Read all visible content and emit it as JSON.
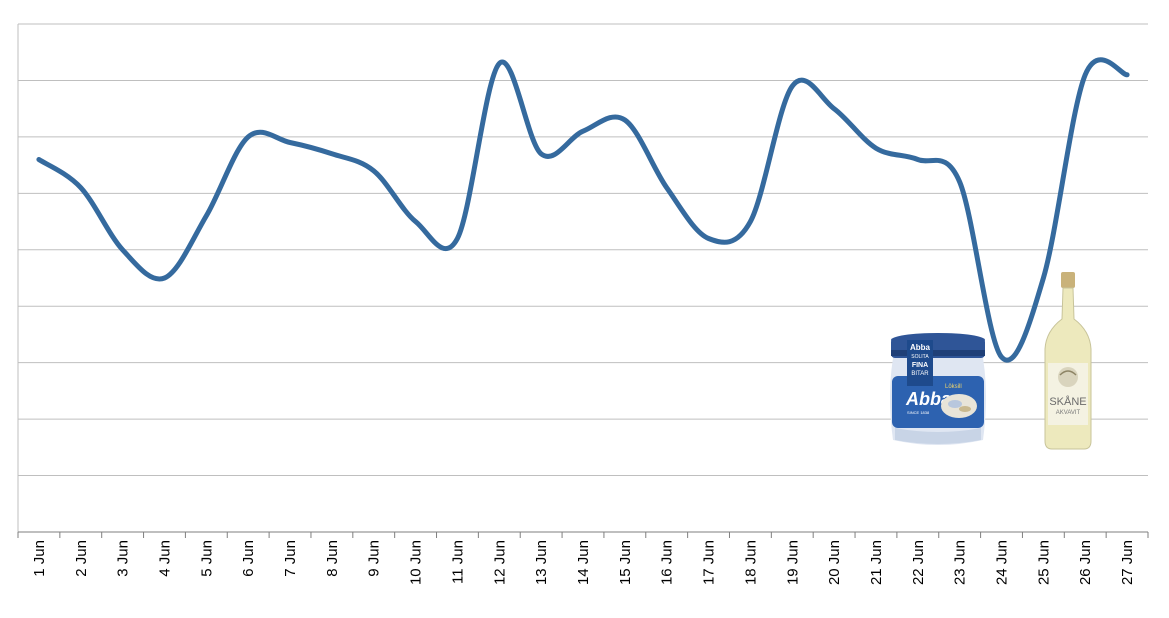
{
  "chart_data": {
    "type": "line",
    "categories": [
      "1 Jun",
      "2 Jun",
      "3 Jun",
      "4 Jun",
      "5 Jun",
      "6 Jun",
      "7 Jun",
      "8 Jun",
      "9 Jun",
      "10 Jun",
      "11 Jun",
      "12 Jun",
      "13 Jun",
      "14 Jun",
      "15 Jun",
      "16 Jun",
      "17 Jun",
      "18 Jun",
      "19 Jun",
      "20 Jun",
      "21 Jun",
      "22 Jun",
      "23 Jun",
      "24 Jun",
      "25 Jun",
      "26 Jun",
      "27 Jun"
    ],
    "values": [
      6.6,
      6.1,
      5.0,
      4.5,
      5.6,
      7.0,
      6.9,
      6.7,
      6.4,
      5.5,
      5.2,
      8.3,
      6.7,
      7.1,
      7.3,
      6.1,
      5.2,
      5.5,
      7.9,
      7.5,
      6.8,
      6.6,
      6.2,
      3.1,
      4.5,
      8.1,
      8.1
    ],
    "ylim": [
      0,
      9
    ],
    "y_ticks": [
      0,
      1,
      2,
      3,
      4,
      5,
      6,
      7,
      8,
      9
    ],
    "grid": true,
    "line_color": "#356A9E",
    "grid_color": "#BFBFBF"
  },
  "products": {
    "herring_jar": {
      "brand": "Abba",
      "variety": "Löksill",
      "badge_lines": [
        "Abba",
        "SOLITA",
        "FINA",
        "BITAR"
      ],
      "since": "SINCE 1838"
    },
    "akvavit_bottle": {
      "brand": "SKÅNE",
      "type": "AKVAVIT"
    }
  }
}
